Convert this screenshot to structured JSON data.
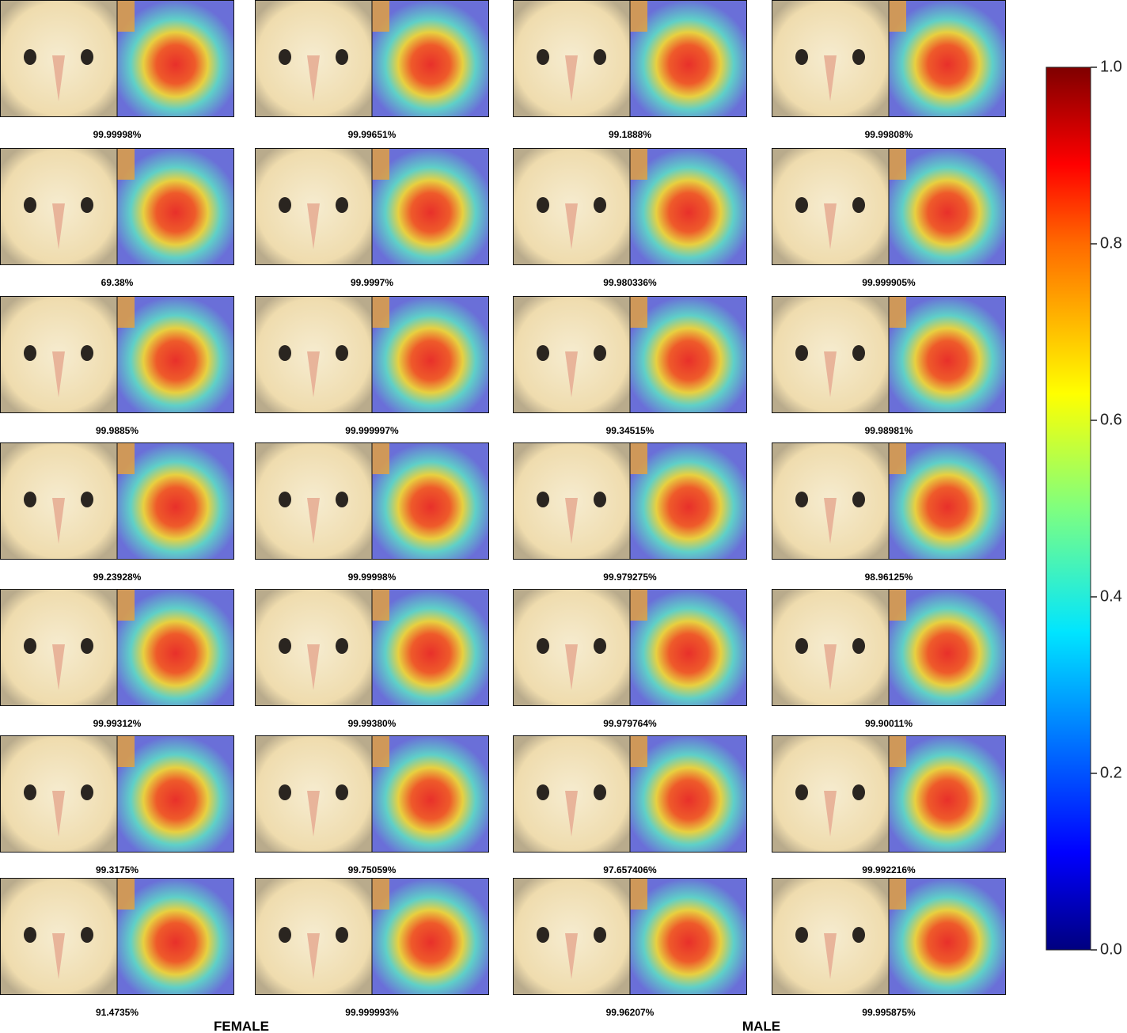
{
  "figure": {
    "rows": [
      [
        "99.99998%",
        "99.99651%",
        "99.1888%",
        "99.99808%"
      ],
      [
        "69.38%",
        "99.9997%",
        "99.980336%",
        "99.999905%"
      ],
      [
        "99.9885%",
        "99.999997%",
        "99.34515%",
        "99.98981%"
      ],
      [
        "99.23928%",
        "99.99998%",
        "99.979275%",
        "98.96125%"
      ],
      [
        "99.99312%",
        "99.99380%",
        "99.979764%",
        "99.90011%"
      ],
      [
        "99.3175%",
        "99.75059%",
        "97.657406%",
        "99.992216%"
      ],
      [
        "91.4735%",
        "99.999993%",
        "99.96207%",
        "99.995875%"
      ]
    ],
    "groups": [
      "FEMALE",
      "MALE"
    ],
    "colorbar": {
      "lim": [
        0,
        1
      ],
      "ticks": [
        {
          "value": 0,
          "label": "0.0"
        },
        {
          "value": 0.2,
          "label": "0.2"
        },
        {
          "value": 0.4,
          "label": "0.4"
        },
        {
          "value": 0.6,
          "label": "0.6"
        },
        {
          "value": 0.8,
          "label": "0.8"
        },
        {
          "value": 1,
          "label": "1.0"
        }
      ]
    }
  }
}
